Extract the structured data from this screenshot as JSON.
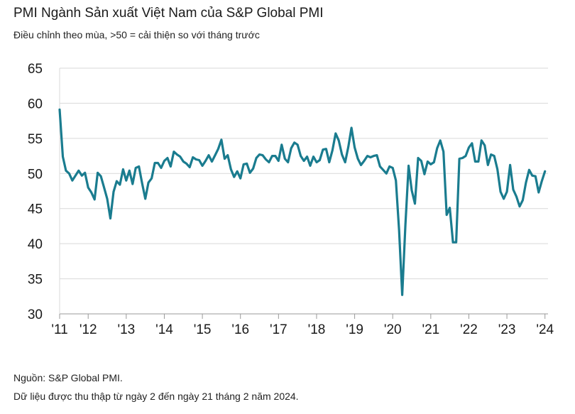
{
  "header": {
    "title": "PMI Ngành Sản xuất Việt Nam của S&P Global PMI",
    "subtitle": "Điều chỉnh theo mùa, >50 = cải thiện so với tháng trước"
  },
  "footer": {
    "source": "Nguồn: S&P Global PMI.",
    "note": "Dữ liệu được thu thập từ ngày 2 đến ngày 21 tháng 2 năm 2024."
  },
  "colors": {
    "line": "#1a7c8f",
    "grid": "#d9d9d9",
    "axis": "#999999"
  },
  "chart_data": {
    "type": "line",
    "title": "PMI Ngành Sản xuất Việt Nam của S&P Global PMI",
    "subtitle": "Điều chỉnh theo mùa, >50 = cải thiện so với tháng trước",
    "ylim": [
      30,
      65
    ],
    "yticks": [
      65,
      60,
      55,
      50,
      45,
      40,
      35,
      30
    ],
    "xlim": [
      2011.25,
      2024.08
    ],
    "xticks": [
      {
        "label": "'11",
        "year": 2011
      },
      {
        "label": "'12",
        "year": 2012
      },
      {
        "label": "'13",
        "year": 2013
      },
      {
        "label": "'14",
        "year": 2014
      },
      {
        "label": "'15",
        "year": 2015
      },
      {
        "label": "'16",
        "year": 2016
      },
      {
        "label": "'17",
        "year": 2017
      },
      {
        "label": "'18",
        "year": 2018
      },
      {
        "label": "'19",
        "year": 2019
      },
      {
        "label": "'20",
        "year": 2020
      },
      {
        "label": "'21",
        "year": 2021
      },
      {
        "label": "'22",
        "year": 2022
      },
      {
        "label": "'23",
        "year": 2023
      },
      {
        "label": "'24",
        "year": 2024
      }
    ],
    "grid": "horizontal",
    "series": [
      {
        "start": "2011-04",
        "values": [
          59.1,
          52.4,
          50.4,
          50.0,
          49.0,
          49.7,
          50.4,
          49.7,
          50.1,
          48.0,
          47.3,
          46.3,
          50.1,
          49.6,
          48.0,
          46.4,
          43.6,
          47.4,
          48.9,
          48.4,
          50.6,
          49.0,
          50.4,
          48.5,
          50.8,
          51.0,
          48.6,
          46.4,
          48.7,
          49.3,
          51.5,
          51.5,
          50.8,
          51.8,
          52.2,
          51.0,
          53.1,
          52.7,
          52.4,
          51.7,
          51.4,
          50.9,
          52.3,
          52.0,
          51.9,
          51.1,
          51.8,
          52.6,
          51.7,
          52.6,
          53.5,
          54.8,
          52.1,
          52.6,
          50.6,
          49.5,
          50.3,
          49.3,
          51.3,
          51.4,
          50.1,
          50.7,
          52.2,
          52.7,
          52.6,
          52.0,
          51.6,
          52.5,
          52.5,
          51.8,
          54.1,
          52.1,
          51.6,
          53.6,
          54.4,
          54.1,
          52.5,
          51.8,
          52.4,
          51.1,
          52.4,
          51.6,
          51.9,
          53.4,
          53.5,
          51.6,
          53.3,
          55.7,
          54.7,
          52.7,
          51.6,
          53.8,
          56.5,
          53.7,
          52.1,
          51.2,
          51.8,
          52.5,
          52.3,
          52.5,
          52.6,
          51.0,
          50.5,
          50.0,
          51.0,
          50.8,
          49.0,
          41.9,
          32.7,
          42.7,
          51.1,
          47.6,
          45.7,
          52.2,
          51.8,
          49.9,
          51.7,
          51.3,
          51.6,
          53.6,
          54.7,
          53.1,
          44.1,
          45.1,
          40.2,
          40.2,
          52.1,
          52.2,
          52.5,
          53.7,
          54.3,
          51.7,
          51.7,
          54.7,
          54.0,
          51.2,
          52.7,
          52.5,
          50.6,
          47.4,
          46.4,
          47.4,
          51.2,
          47.7,
          46.7,
          45.3,
          46.2,
          48.7,
          50.5,
          49.7,
          49.6,
          47.3,
          48.9,
          50.3
        ]
      }
    ]
  }
}
